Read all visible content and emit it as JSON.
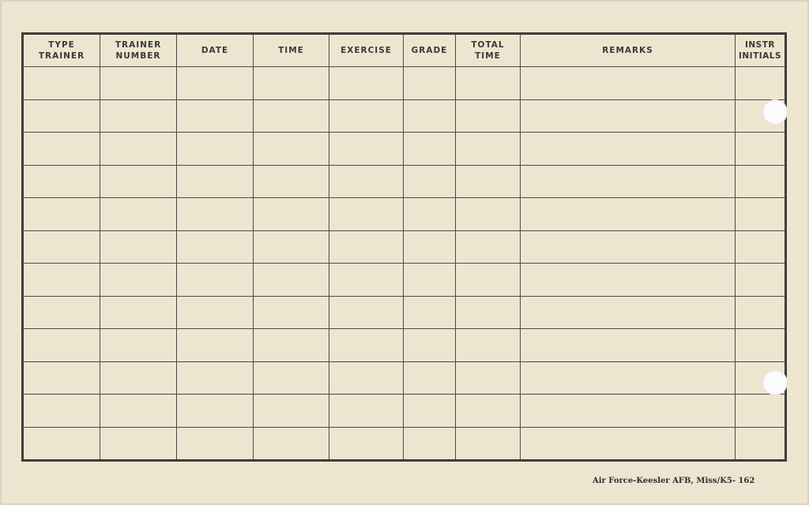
{
  "form": {
    "columns": [
      "TYPE\nTRAINER",
      "TRAINER\nNUMBER",
      "DATE",
      "TIME",
      "EXERCISE",
      "GRADE",
      "TOTAL\nTIME",
      "REMARKS",
      "INSTR\nINITIALS"
    ],
    "blank_rows": 12
  },
  "footer": {
    "imprint": "Air Force-Keesler AFB, Miss/K5- 162"
  },
  "colors": {
    "paper": "#eee5d1",
    "ink": "#3d3d3a"
  }
}
